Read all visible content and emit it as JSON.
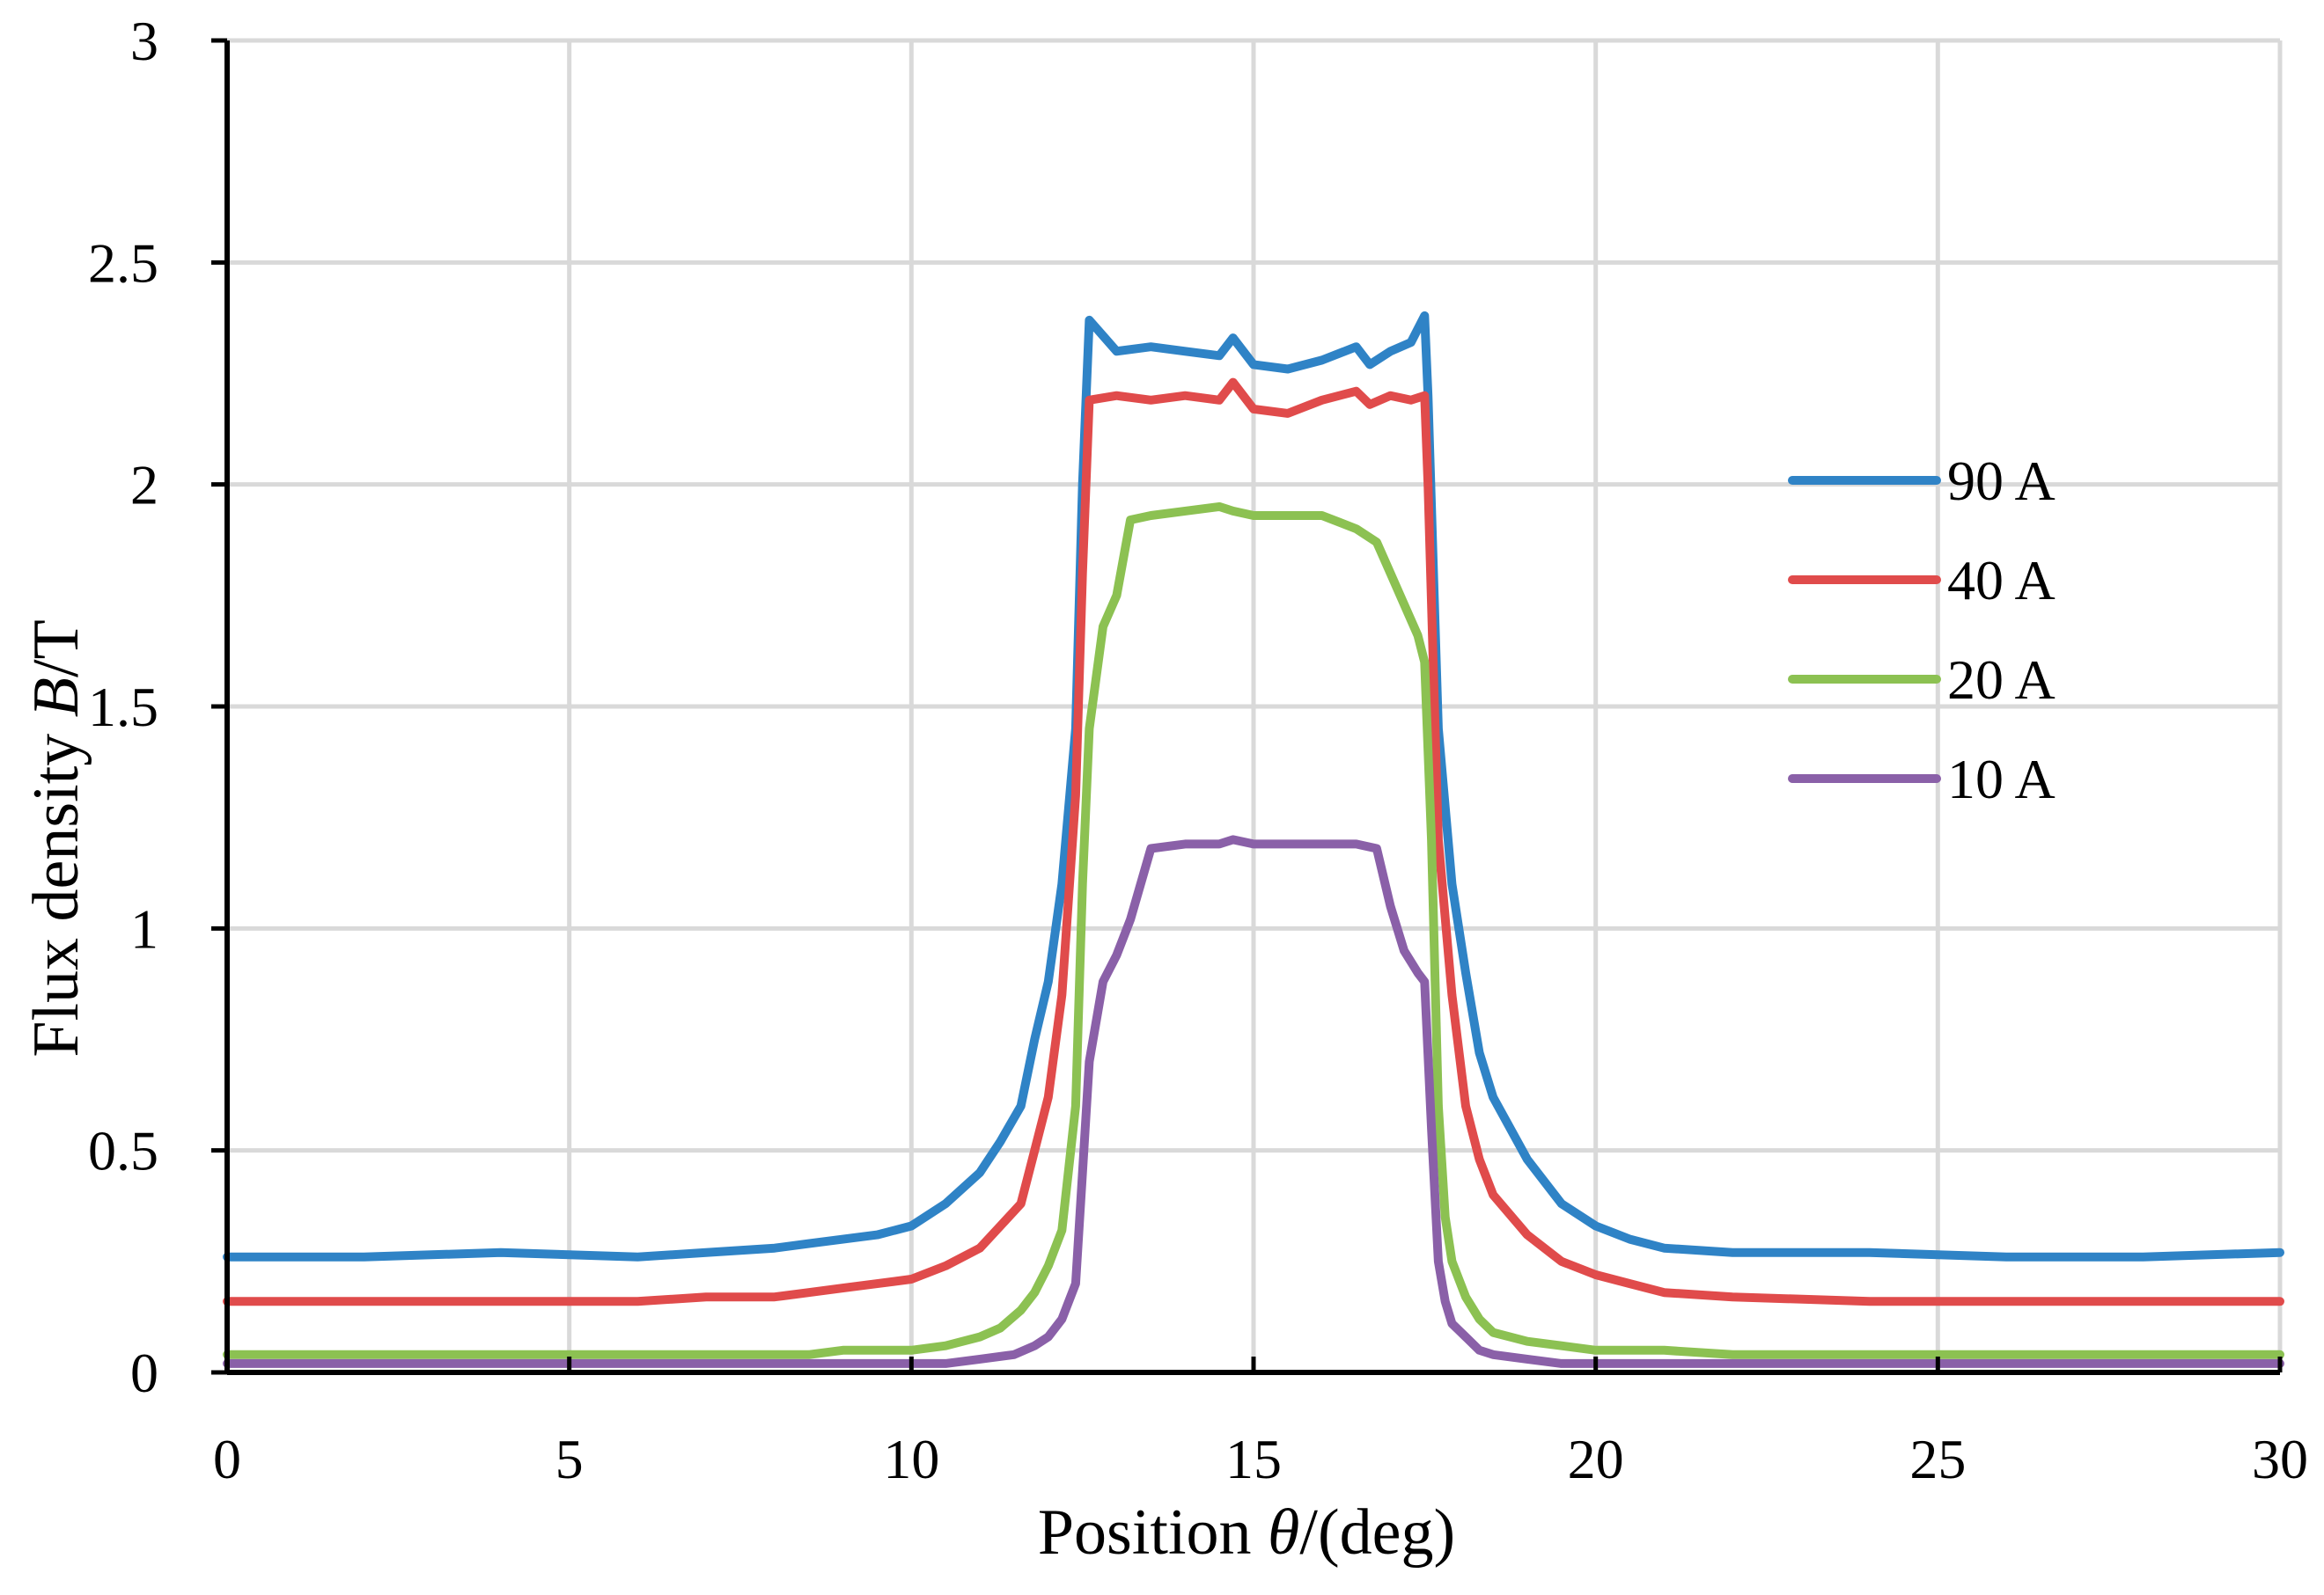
{
  "chart_data": {
    "type": "line",
    "title": "",
    "xlabel": "Position θ/(deg)",
    "xlabel_parts": [
      "Position ",
      "θ",
      "/(deg)"
    ],
    "ylabel": "Flux density B/T",
    "ylabel_parts": [
      "Flux density ",
      "B",
      "/T"
    ],
    "xlim": [
      0,
      30
    ],
    "ylim": [
      0,
      3
    ],
    "xticks": [
      0,
      5,
      10,
      15,
      20,
      25,
      30
    ],
    "xtick_labels": [
      "0",
      "5",
      "10",
      "15",
      "20",
      "25",
      "30"
    ],
    "yticks": [
      0,
      0.5,
      1,
      1.5,
      2,
      2.5,
      3
    ],
    "ytick_labels": [
      "0",
      "0.5",
      "1",
      "1.5",
      "2",
      "2.5",
      "3"
    ],
    "grid": true,
    "legend_position": "right",
    "series": [
      {
        "name": "90 A",
        "color": "#2f83c6",
        "x": [
          0,
          2,
          4,
          6,
          7,
          8,
          8.5,
          9,
          9.5,
          10,
          10.5,
          11,
          11.3,
          11.6,
          11.8,
          12,
          12.2,
          12.4,
          12.5,
          12.6,
          13,
          13.5,
          14,
          14.5,
          14.7,
          15,
          15.5,
          16,
          16.5,
          16.7,
          17,
          17.3,
          17.5,
          17.55,
          17.7,
          17.9,
          18.1,
          18.3,
          18.5,
          19,
          19.5,
          20,
          20.5,
          21,
          22,
          24,
          26,
          28,
          30
        ],
        "y": [
          0.26,
          0.26,
          0.27,
          0.26,
          0.27,
          0.28,
          0.29,
          0.3,
          0.31,
          0.33,
          0.38,
          0.45,
          0.52,
          0.6,
          0.75,
          0.88,
          1.1,
          1.45,
          2.0,
          2.37,
          2.3,
          2.31,
          2.3,
          2.29,
          2.33,
          2.27,
          2.26,
          2.28,
          2.31,
          2.27,
          2.3,
          2.32,
          2.38,
          2.2,
          1.45,
          1.1,
          0.9,
          0.72,
          0.62,
          0.48,
          0.38,
          0.33,
          0.3,
          0.28,
          0.27,
          0.27,
          0.26,
          0.26,
          0.27
        ]
      },
      {
        "name": "40 A",
        "color": "#e04b4b",
        "x": [
          0,
          2,
          4,
          6,
          7,
          8,
          8.5,
          9,
          9.5,
          10,
          10.5,
          11,
          11.3,
          11.6,
          11.8,
          12,
          12.2,
          12.4,
          12.5,
          12.6,
          13,
          13.5,
          14,
          14.5,
          14.7,
          15,
          15.5,
          16,
          16.5,
          16.7,
          17,
          17.3,
          17.5,
          17.55,
          17.7,
          17.9,
          18.1,
          18.3,
          18.5,
          19,
          19.5,
          20,
          20.5,
          21,
          22,
          24,
          26,
          28,
          30
        ],
        "y": [
          0.16,
          0.16,
          0.16,
          0.16,
          0.17,
          0.17,
          0.18,
          0.19,
          0.2,
          0.21,
          0.24,
          0.28,
          0.33,
          0.38,
          0.5,
          0.62,
          0.85,
          1.3,
          1.8,
          2.19,
          2.2,
          2.19,
          2.2,
          2.19,
          2.23,
          2.17,
          2.16,
          2.19,
          2.21,
          2.18,
          2.2,
          2.19,
          2.2,
          2.0,
          1.2,
          0.85,
          0.6,
          0.48,
          0.4,
          0.31,
          0.25,
          0.22,
          0.2,
          0.18,
          0.17,
          0.16,
          0.16,
          0.16,
          0.16
        ]
      },
      {
        "name": "20 A",
        "color": "#8cc152",
        "x": [
          0,
          2,
          4,
          6,
          7,
          8,
          8.5,
          9,
          9.5,
          10,
          10.5,
          11,
          11.3,
          11.6,
          11.8,
          12,
          12.2,
          12.4,
          12.5,
          12.6,
          12.8,
          13,
          13.2,
          13.5,
          14,
          14.5,
          14.7,
          15,
          15.5,
          16,
          16.5,
          16.8,
          17,
          17.2,
          17.4,
          17.5,
          17.6,
          17.7,
          17.8,
          17.9,
          18.1,
          18.3,
          18.5,
          19,
          19.5,
          20,
          21,
          22,
          24,
          26,
          28,
          30
        ],
        "y": [
          0.04,
          0.04,
          0.04,
          0.04,
          0.04,
          0.04,
          0.04,
          0.05,
          0.05,
          0.05,
          0.06,
          0.08,
          0.1,
          0.14,
          0.18,
          0.24,
          0.32,
          0.6,
          1.1,
          1.45,
          1.68,
          1.75,
          1.92,
          1.93,
          1.94,
          1.95,
          1.94,
          1.93,
          1.93,
          1.93,
          1.9,
          1.87,
          1.8,
          1.73,
          1.66,
          1.6,
          1.2,
          0.6,
          0.35,
          0.25,
          0.17,
          0.12,
          0.09,
          0.07,
          0.06,
          0.05,
          0.05,
          0.04,
          0.04,
          0.04,
          0.04,
          0.04
        ]
      },
      {
        "name": "10 A",
        "color": "#8a60a8",
        "x": [
          0,
          2,
          4,
          6,
          7,
          8,
          8.5,
          9,
          9.5,
          10,
          10.5,
          11,
          11.5,
          11.8,
          12,
          12.2,
          12.4,
          12.5,
          12.6,
          12.8,
          13,
          13.2,
          13.5,
          14,
          14.5,
          14.7,
          15,
          15.5,
          16,
          16.5,
          16.8,
          17,
          17.2,
          17.4,
          17.5,
          17.6,
          17.7,
          17.8,
          17.9,
          18.1,
          18.3,
          18.5,
          19,
          19.5,
          20,
          21,
          22,
          24,
          26,
          28,
          30
        ],
        "y": [
          0.02,
          0.02,
          0.02,
          0.02,
          0.02,
          0.02,
          0.02,
          0.02,
          0.02,
          0.02,
          0.02,
          0.03,
          0.04,
          0.06,
          0.08,
          0.12,
          0.2,
          0.45,
          0.7,
          0.88,
          0.94,
          1.02,
          1.18,
          1.19,
          1.19,
          1.2,
          1.19,
          1.19,
          1.19,
          1.19,
          1.18,
          1.05,
          0.95,
          0.9,
          0.88,
          0.55,
          0.25,
          0.16,
          0.11,
          0.08,
          0.05,
          0.04,
          0.03,
          0.02,
          0.02,
          0.02,
          0.02,
          0.02,
          0.02,
          0.02,
          0.02
        ]
      }
    ]
  }
}
